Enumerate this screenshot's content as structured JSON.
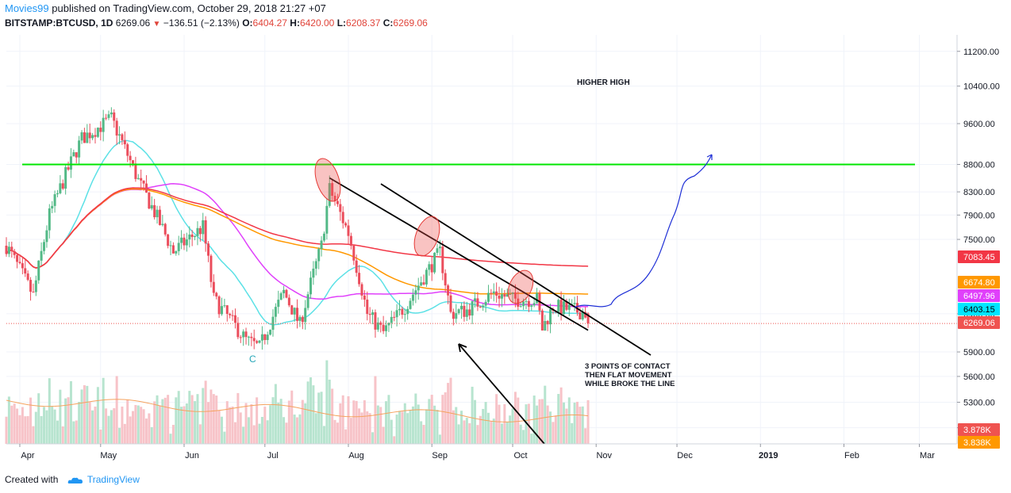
{
  "header": {
    "author": "Movies99",
    "published_text": "published on TradingView.com, October 29, 2018 21:27 +07",
    "symbol": "BITSTAMP:BTCUSD, 1D",
    "last_price": "6269.06",
    "change": "−136.51 (−2.13%)",
    "open_label": "O:",
    "open": "6404.27",
    "high_label": "H:",
    "high": "6420.00",
    "low_label": "L:",
    "low": "6208.37",
    "close_label": "C:",
    "close": "6269.06"
  },
  "footer": {
    "created_with": "Created with",
    "brand": "TradingView"
  },
  "chart_data": {
    "type": "candlestick",
    "symbol": "BITSTAMP:BTCUSD",
    "interval": "1D",
    "y_scale": "log",
    "ylim": [
      4850,
      11600
    ],
    "x_range": [
      "2018-03-27",
      "2019-03-15"
    ],
    "last_bar": {
      "date": "2018-10-29",
      "open": 6404.27,
      "high": 6420.0,
      "low": 6208.37,
      "close": 6269.06
    },
    "x_ticks": [
      {
        "label": "Apr",
        "date": "2018-04-01"
      },
      {
        "label": "May",
        "date": "2018-05-01"
      },
      {
        "label": "Jun",
        "date": "2018-06-01"
      },
      {
        "label": "Jul",
        "date": "2018-07-01"
      },
      {
        "label": "Aug",
        "date": "2018-08-01"
      },
      {
        "label": "Sep",
        "date": "2018-09-01"
      },
      {
        "label": "Oct",
        "date": "2018-10-01"
      },
      {
        "label": "Nov",
        "date": "2018-11-01"
      },
      {
        "label": "Dec",
        "date": "2018-12-01"
      },
      {
        "label": "2019",
        "date": "2019-01-01"
      },
      {
        "label": "Feb",
        "date": "2019-02-01"
      },
      {
        "label": "Mar",
        "date": "2019-03-01"
      }
    ],
    "y_ticks": [
      {
        "label": "11200.00",
        "value": 11200
      },
      {
        "label": "10400.00",
        "value": 10400
      },
      {
        "label": "9600.00",
        "value": 9600
      },
      {
        "label": "8800.00",
        "value": 8800
      },
      {
        "label": "8300.00",
        "value": 8300
      },
      {
        "label": "7900.00",
        "value": 7900
      },
      {
        "label": "7500.00",
        "value": 7500
      },
      {
        "label": "6400.00",
        "value": 6400
      },
      {
        "label": "5900.00",
        "value": 5900
      },
      {
        "label": "5600.00",
        "value": 5600
      },
      {
        "label": "5300.00",
        "value": 5300
      },
      {
        "label": "5020.00",
        "value": 5020
      }
    ],
    "price_labels": [
      {
        "label": "7083.45",
        "value": 7083.45,
        "color": "#f23645"
      },
      {
        "label": "6674.80",
        "value": 6674.8,
        "color": "#ff9800"
      },
      {
        "label": "6497.96",
        "value": 6497.96,
        "color": "#e040fb"
      },
      {
        "label": "6403.15",
        "value": 6403.15,
        "color": "#00e5ff"
      },
      {
        "label": "6269.06",
        "value": 6269.06,
        "color": "#ef5350"
      },
      {
        "label": "3.878K",
        "value": 3878,
        "color": "#ef5350"
      },
      {
        "label": "3.838K",
        "value": 3838,
        "color": "#ff9800"
      }
    ],
    "candles_up_color": "#53b987",
    "candles_down_color": "#eb4d5c",
    "moving_averages": [
      {
        "color": "#5ce1e6",
        "last": 6403.15
      },
      {
        "color": "#e040fb",
        "last": 6497.96
      },
      {
        "color": "#ff9800",
        "last": 6674.8
      },
      {
        "color": "#f23645",
        "last": 7083.45
      }
    ],
    "horizontal_lines": [
      {
        "value": 8800,
        "color": "#00e600"
      },
      {
        "value": 6269.06,
        "color": "#ef5350"
      }
    ],
    "trendline": {
      "from": {
        "date": "2018-07-25",
        "value": 8550
      },
      "to": {
        "date": "2018-10-29",
        "value": 6180
      }
    },
    "projection_path_color": "#1e2fd6",
    "annotations": {
      "higher_high": "HIGHER HIGH",
      "contact_note_1": "3 POINTS OF CONTACT",
      "contact_note_2": "THEN FLAT MOVEMENT",
      "contact_note_3": "WHILE BROKE THE LINE",
      "wave_label": "C"
    }
  }
}
